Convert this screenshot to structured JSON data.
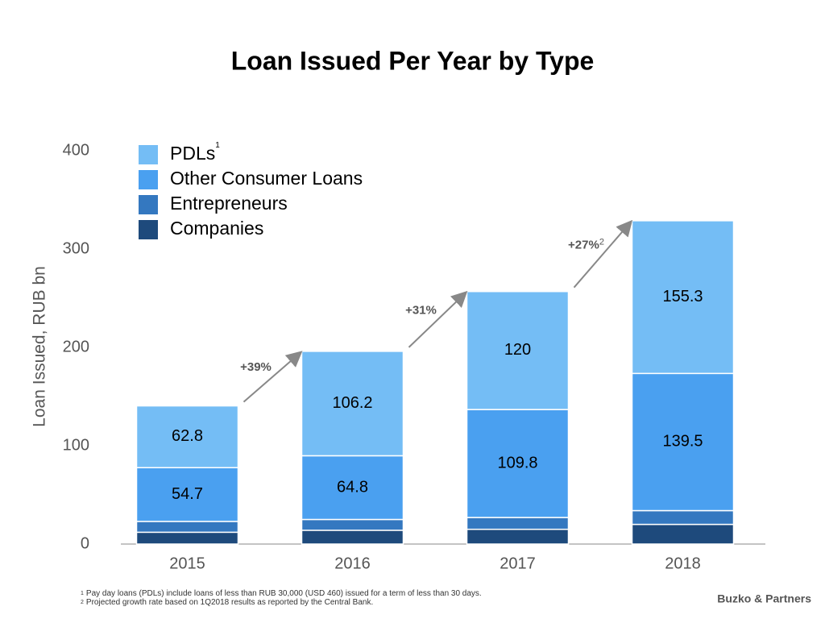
{
  "chart_data": {
    "type": "stacked_bar",
    "title": "Loan Issued Per Year by Type",
    "y_label": "Loan Issued, RUB bn",
    "categories": [
      "2015",
      "2016",
      "2017",
      "2018"
    ],
    "series": [
      {
        "name": "PDLs",
        "note": "1",
        "color": "#74bdf5",
        "labels": true,
        "values": [
          62.8,
          106.2,
          120,
          155.3
        ]
      },
      {
        "name": "Other Consumer Loans",
        "color": "#4aa0f0",
        "labels": true,
        "values": [
          54.7,
          64.8,
          109.8,
          139.5
        ]
      },
      {
        "name": "Entrepreneurs",
        "color": "#3478c0",
        "labels": false,
        "values": [
          11,
          11,
          12,
          14
        ]
      },
      {
        "name": "Companies",
        "color": "#1e4a7c",
        "labels": false,
        "values": [
          12,
          14,
          15,
          20
        ]
      }
    ],
    "ylim": [
      0,
      400
    ],
    "yticks": [
      0,
      100,
      200,
      300,
      400
    ],
    "grid": false,
    "annotations": [
      {
        "text": "+39%"
      },
      {
        "text": "+31%"
      },
      {
        "text": "+27%",
        "note": "2"
      }
    ],
    "footnotes": [
      {
        "mark": "1",
        "text": "Pay day loans (PDLs) include loans of less than RUB 30,000 (USD 460) issued for a term of less than 30 days."
      },
      {
        "mark": "2",
        "text": "Projected growth rate based on 1Q2018 results as reported by the Central Bank."
      }
    ],
    "source": "Buzko & Partners"
  }
}
